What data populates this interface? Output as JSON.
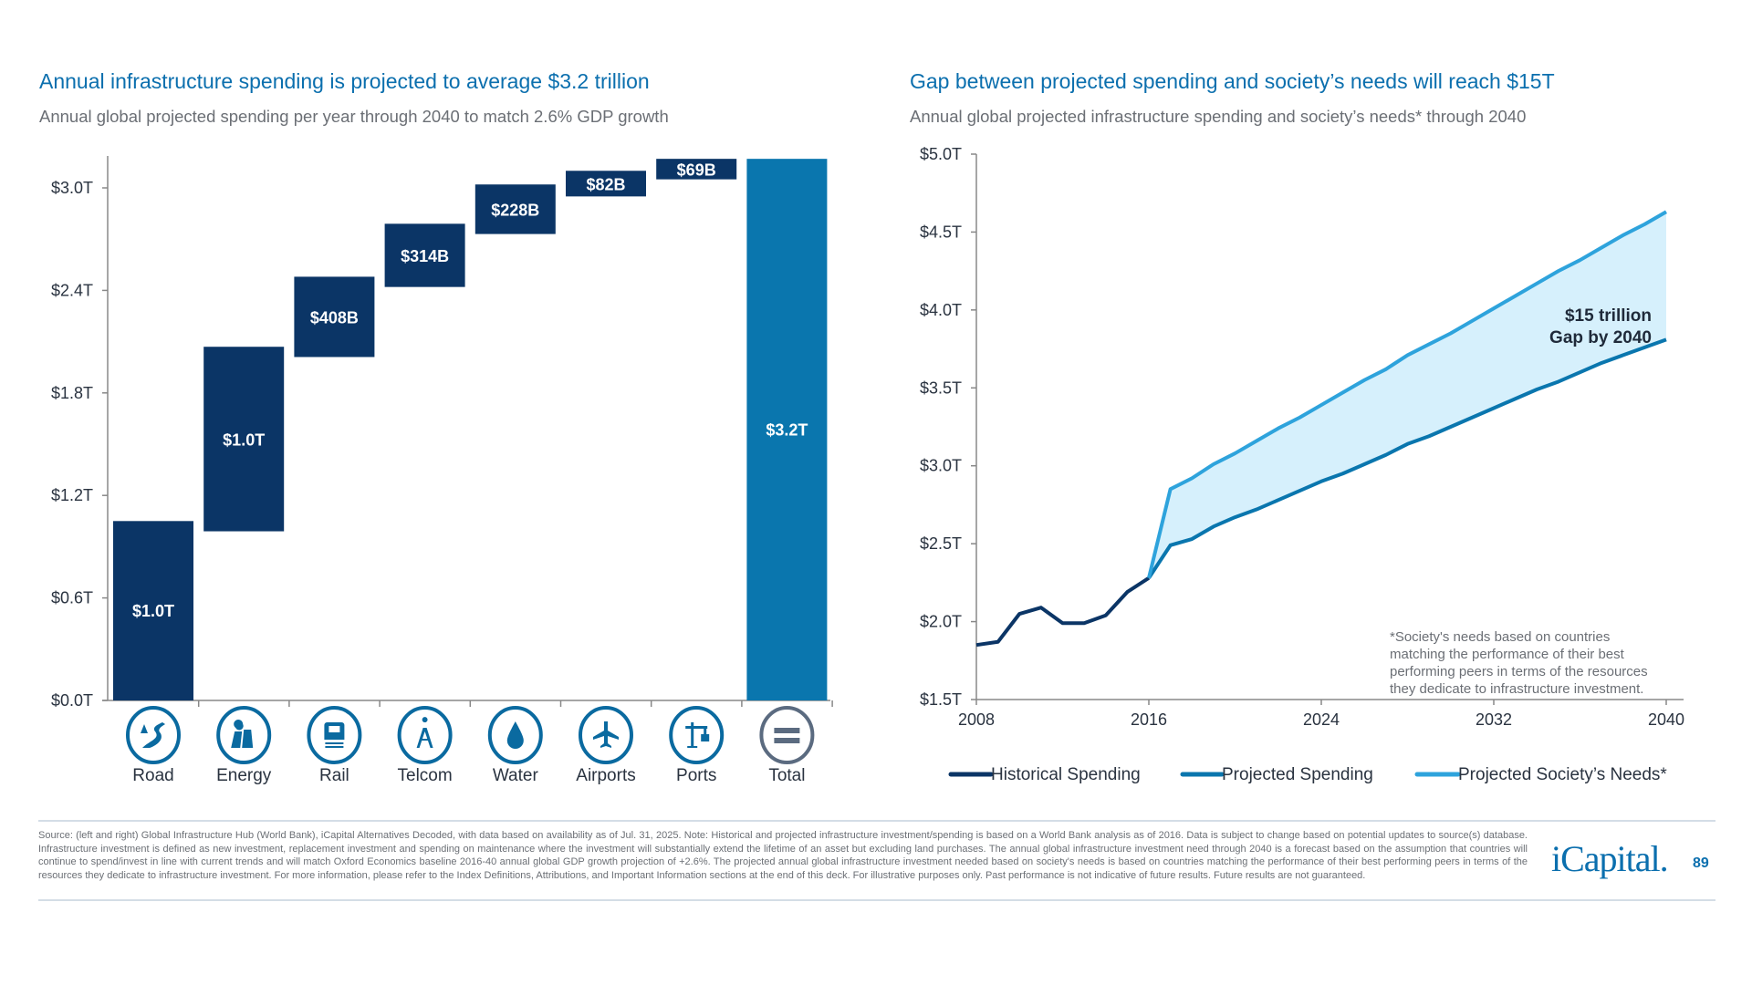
{
  "left": {
    "title": "Annual infrastructure spending is projected to average $3.2 trillion",
    "subtitle": "Annual global projected spending per year through 2040 to match 2.6% GDP growth"
  },
  "right": {
    "title": "Gap between projected spending and society’s needs will reach $15T",
    "subtitle": "Annual global projected infrastructure spending and society’s needs* through 2040",
    "annotation": [
      "$15 trillion",
      "Gap by 2040"
    ],
    "footnote": [
      "*Society's needs based on countries",
      "matching the performance of their best",
      "performing peers in terms of the resources",
      "they dedicate to infrastructure investment."
    ]
  },
  "chart_data": [
    {
      "type": "bar",
      "subtype": "waterfall",
      "yticks": [
        "$0.0T",
        "$0.6T",
        "$1.2T",
        "$1.8T",
        "$2.4T",
        "$3.0T"
      ],
      "ylim": [
        0,
        3.17
      ],
      "categories": [
        "Road",
        "Energy",
        "Rail",
        "Telcom",
        "Water",
        "Airports",
        "Ports",
        "Total"
      ],
      "labels": [
        "$1.0T",
        "$1.0T",
        "$408B",
        "$314B",
        "$228B",
        "$82B",
        "$69B",
        "$3.2T"
      ],
      "bar_start": [
        0,
        0.99,
        2.01,
        2.42,
        2.73,
        2.95,
        3.05,
        0
      ],
      "bar_end": [
        1.05,
        2.07,
        2.48,
        2.79,
        3.02,
        3.1,
        3.17,
        3.17
      ],
      "icons": [
        "road-icon",
        "energy-plant-icon",
        "rail-icon",
        "telecom-tower-icon",
        "water-drop-icon",
        "airplane-icon",
        "port-crane-icon",
        "equals-icon"
      ],
      "colors": {
        "segment": "#0b3566",
        "total": "#0a76ae",
        "icon": "#0a6aa0",
        "total_icon": "#5b6b80"
      }
    },
    {
      "type": "area",
      "xlim": [
        2008,
        2040
      ],
      "ylim": [
        1.5,
        5.0
      ],
      "xticks": [
        "2008",
        "2016",
        "2024",
        "2032",
        "2040"
      ],
      "yticks": [
        "$1.5T",
        "$2.0T",
        "$2.5T",
        "$3.0T",
        "$3.5T",
        "$4.0T",
        "$4.5T",
        "$5.0T"
      ],
      "series": [
        {
          "name": "Historical Spending",
          "color": "#0b3566",
          "x": [
            2008,
            2009,
            2010,
            2011,
            2012,
            2013,
            2014,
            2015,
            2016
          ],
          "y": [
            1.85,
            1.87,
            2.05,
            2.09,
            1.99,
            1.99,
            2.04,
            2.19,
            2.28
          ]
        },
        {
          "name": "Projected Spending",
          "color": "#0a76ae",
          "x": [
            2016,
            2017,
            2018,
            2019,
            2020,
            2021,
            2022,
            2023,
            2024,
            2025,
            2026,
            2027,
            2028,
            2029,
            2030,
            2031,
            2032,
            2033,
            2034,
            2035,
            2036,
            2037,
            2038,
            2039,
            2040
          ],
          "y": [
            2.28,
            2.49,
            2.53,
            2.61,
            2.67,
            2.72,
            2.78,
            2.84,
            2.9,
            2.95,
            3.01,
            3.07,
            3.14,
            3.19,
            3.25,
            3.31,
            3.37,
            3.43,
            3.49,
            3.54,
            3.6,
            3.66,
            3.71,
            3.76,
            3.81
          ]
        },
        {
          "name": "Projected Society’s Needs*",
          "color": "#2ea3dc",
          "x": [
            2016,
            2017,
            2018,
            2019,
            2020,
            2021,
            2022,
            2023,
            2024,
            2025,
            2026,
            2027,
            2028,
            2029,
            2030,
            2031,
            2032,
            2033,
            2034,
            2035,
            2036,
            2037,
            2038,
            2039,
            2040
          ],
          "y": [
            2.28,
            2.85,
            2.92,
            3.01,
            3.08,
            3.16,
            3.24,
            3.31,
            3.39,
            3.47,
            3.55,
            3.62,
            3.71,
            3.78,
            3.85,
            3.93,
            4.01,
            4.09,
            4.17,
            4.25,
            4.32,
            4.4,
            4.48,
            4.55,
            4.63
          ]
        }
      ],
      "gap_fill": "#d6f0fc",
      "legend": "bottom"
    }
  ],
  "footer": {
    "source": "Source: (left and right) Global Infrastructure Hub (World Bank), iCapital Alternatives Decoded, with data based on availability as of Jul. 31, 2025. Note: Historical and projected infrastructure investment/spending is based on a World Bank analysis as of 2016. Data is subject to change based on potential updates to source(s) database. Infrastructure investment is defined as new investment, replacement investment and spending on maintenance where the investment will substantially extend the lifetime of an asset but excluding land purchases. The annual global infrastructure investment need through 2040 is a forecast based on the assumption that countries will continue to spend/invest in line with current trends and will match Oxford Economics baseline 2016-40 annual global GDP growth projection of +2.6%. The projected annual global infrastructure investment needed based on society's needs is based on countries matching the performance of their best performing peers in terms of the resources they dedicate to infrastructure investment. For more information, please refer to the Index Definitions, Attributions, and Important Information sections at the end of this deck. For illustrative purposes only. Past performance is not indicative of future results. Future results are not guaranteed.",
    "logo": "iCapital.",
    "page": "89"
  }
}
